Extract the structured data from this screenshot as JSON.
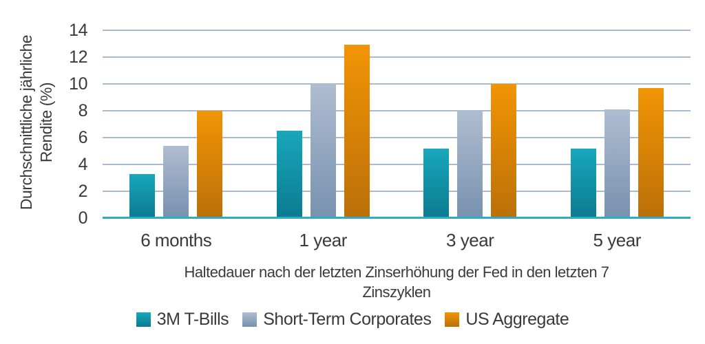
{
  "chart": {
    "background": "#ffffff",
    "text_color": "#3a3a3a",
    "gridline_color": "#A7BAD1",
    "baseline_color": "#31A9C9"
  },
  "chart_data": {
    "type": "bar",
    "categories": [
      "6 months",
      "1 year",
      "3 year",
      "5 year"
    ],
    "series": [
      {
        "name": "3M T-Bills",
        "color": "#0F8FA5",
        "color_top": "#18A7BC",
        "color_bottom": "#0C7A8F",
        "values": [
          3.3,
          6.5,
          5.2,
          5.2
        ]
      },
      {
        "name": "Short-Term Corporates",
        "color": "#97A9C1",
        "color_top": "#AFBDD0",
        "color_bottom": "#7791AF",
        "values": [
          5.4,
          10.0,
          8.0,
          8.1
        ]
      },
      {
        "name": "US Aggregate",
        "color": "#E08A0B",
        "color_top": "#F29405",
        "color_bottom": "#BA7008",
        "values": [
          8.0,
          12.9,
          10.0,
          9.7
        ]
      }
    ],
    "ylabel_lines": [
      "Durchschnittliche jährliche",
      "Rendite (%)"
    ],
    "xlabel_lines": [
      "Haltedauer nach der letzten Zinserhöhung der Fed in den letzten 7",
      "Zinszyklen"
    ],
    "yticks": [
      0,
      2,
      4,
      6,
      8,
      10,
      12,
      14
    ],
    "ylim": [
      0,
      14
    ],
    "grid": "horizontal",
    "legend_position": "bottom"
  }
}
